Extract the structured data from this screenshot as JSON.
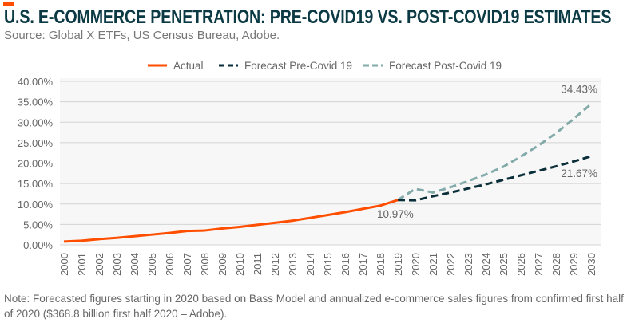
{
  "header": {
    "title": "U.S. E-COMMERCE PENETRATION: PRE-COVID19 VS. POST-COVID19 ESTIMATES",
    "subtitle": "Source: Global X ETFs, US Census Bureau, Adobe.",
    "accent_color": "#ff4e00"
  },
  "note": "Note: Forecasted figures starting in 2020 based on Bass Model and annualized e-commerce sales figures from confirmed first half of 2020 ($368.8 billion first half 2020 – Adobe).",
  "chart_data": {
    "type": "line",
    "title": "",
    "xlabel": "",
    "ylabel": "",
    "ylim": [
      0,
      40
    ],
    "yticks": [
      "0.00%",
      "5.00%",
      "10.00%",
      "15.00%",
      "20.00%",
      "25.00%",
      "30.00%",
      "35.00%",
      "40.00%"
    ],
    "ytick_values": [
      0,
      5,
      10,
      15,
      20,
      25,
      30,
      35,
      40
    ],
    "x": [
      2000,
      2001,
      2002,
      2003,
      2004,
      2005,
      2006,
      2007,
      2008,
      2009,
      2010,
      2011,
      2012,
      2013,
      2014,
      2015,
      2016,
      2017,
      2018,
      2019,
      2020,
      2021,
      2022,
      2023,
      2024,
      2025,
      2026,
      2027,
      2028,
      2029,
      2030
    ],
    "xtick_labels": [
      "2000",
      "2001",
      "2002",
      "2003",
      "2004",
      "2005",
      "2006",
      "2007",
      "2008",
      "2009",
      "2010",
      "2011",
      "2012",
      "2013",
      "2014",
      "2015",
      "2016",
      "2017",
      "2018",
      "2019",
      "2020",
      "2021",
      "2022",
      "2023",
      "2024",
      "2025",
      "2026",
      "2027",
      "2028",
      "2029",
      "2030"
    ],
    "grid": true,
    "legend_position": "top",
    "series": [
      {
        "name": "Actual",
        "color": "#ff4e00",
        "dashed": false,
        "x": [
          2000,
          2001,
          2002,
          2003,
          2004,
          2005,
          2006,
          2007,
          2008,
          2009,
          2010,
          2011,
          2012,
          2013,
          2014,
          2015,
          2016,
          2017,
          2018,
          2019
        ],
        "values": [
          0.8,
          1.0,
          1.4,
          1.7,
          2.1,
          2.5,
          2.9,
          3.4,
          3.5,
          4.0,
          4.4,
          4.9,
          5.4,
          5.9,
          6.6,
          7.3,
          8.0,
          8.8,
          9.6,
          10.97
        ]
      },
      {
        "name": "Forecast Pre-Covid 19",
        "color": "#0b2f3a",
        "dashed": true,
        "x": [
          2019,
          2020,
          2021,
          2022,
          2023,
          2024,
          2025,
          2026,
          2027,
          2028,
          2029,
          2030
        ],
        "values": [
          10.97,
          10.9,
          11.9,
          12.8,
          13.8,
          14.8,
          15.9,
          17.0,
          18.1,
          19.2,
          20.4,
          21.67
        ]
      },
      {
        "name": "Forecast Post-Covid 19",
        "color": "#82aaa9",
        "dashed": true,
        "x": [
          2019,
          2020,
          2021,
          2022,
          2023,
          2024,
          2025,
          2026,
          2027,
          2028,
          2029,
          2030
        ],
        "values": [
          10.97,
          13.7,
          12.8,
          14.1,
          15.6,
          17.2,
          19.1,
          21.6,
          24.3,
          27.3,
          30.8,
          34.43
        ]
      }
    ],
    "annotations": [
      {
        "text": "10.97%",
        "x": 2019,
        "y": 10.97
      },
      {
        "text": "34.43%",
        "x": 2030,
        "y": 34.43
      },
      {
        "text": "21.67%",
        "x": 2030,
        "y": 21.67
      }
    ]
  }
}
